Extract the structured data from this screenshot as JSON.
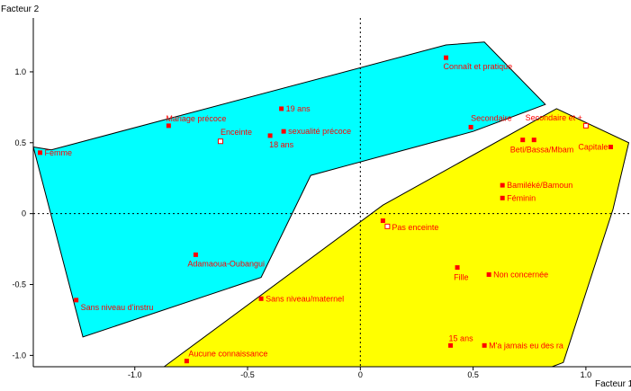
{
  "chart_data": {
    "type": "scatter",
    "title": "",
    "xlabel": "Facteur 1",
    "ylabel": "Facteur 2",
    "xlim": [
      -1.45,
      1.2
    ],
    "ylim": [
      -1.08,
      1.38
    ],
    "x_ticks": [
      -1.0,
      -0.5,
      0.0,
      0.5,
      1.0
    ],
    "x_tick_labels": [
      "-1.0",
      "-0.5",
      "0",
      "0.5",
      "1.0"
    ],
    "y_ticks": [
      1.0,
      0.5,
      0.0,
      -0.5,
      -1.0
    ],
    "y_tick_labels": [
      "1.0",
      "0.5",
      "0",
      "-0.5",
      "-1.0"
    ],
    "grid": false,
    "reference_lines": [
      0,
      0
    ],
    "point_color": "#ff0000",
    "label_color": "#ff0000",
    "regions": [
      {
        "fill": "#00ffff",
        "polygon": [
          [
            -1.45,
            0.47
          ],
          [
            -1.37,
            0.45
          ],
          [
            0.38,
            1.19
          ],
          [
            0.55,
            1.21
          ],
          [
            0.82,
            0.77
          ],
          [
            0.5,
            0.58
          ],
          [
            -0.22,
            0.27
          ],
          [
            -0.44,
            -0.45
          ],
          [
            -1.23,
            -0.87
          ]
        ]
      },
      {
        "fill": "#ffff00",
        "polygon": [
          [
            -0.87,
            -1.08
          ],
          [
            0.1,
            0.06
          ],
          [
            0.87,
            0.74
          ],
          [
            1.19,
            0.5
          ],
          [
            1.12,
            0.03
          ],
          [
            0.9,
            -1.05
          ],
          [
            0.85,
            -1.08
          ]
        ]
      }
    ],
    "points": [
      {
        "label": "Femme",
        "x": -1.42,
        "y": 0.43,
        "marker": "filled"
      },
      {
        "label": "Mariage précoce",
        "x": -0.85,
        "y": 0.62,
        "marker": "filled"
      },
      {
        "label": "Enceinte",
        "x": -0.62,
        "y": 0.51,
        "marker": "open"
      },
      {
        "label": "19 ans",
        "x": -0.35,
        "y": 0.74,
        "marker": "filled"
      },
      {
        "label": "sexualité précoce",
        "x": -0.34,
        "y": 0.58,
        "marker": "filled"
      },
      {
        "label": "18 ans",
        "x": -0.4,
        "y": 0.55,
        "marker": "filled"
      },
      {
        "label": "Connaît et pratique",
        "x": 0.38,
        "y": 1.1,
        "marker": "filled"
      },
      {
        "label": "Secondaire",
        "x": 0.49,
        "y": 0.61,
        "marker": "filled"
      },
      {
        "label": "Secondaire et +",
        "x": 1.0,
        "y": 0.62,
        "marker": "open"
      },
      {
        "label": "Capitale",
        "x": 1.11,
        "y": 0.47,
        "marker": "filled"
      },
      {
        "label": "Beti/Bassa/Mbam",
        "x": 0.72,
        "y": 0.52,
        "marker": "filled"
      },
      {
        "label": "",
        "x": 0.77,
        "y": 0.52,
        "marker": "filled"
      },
      {
        "label": "Bamiléké/Bamoun",
        "x": 0.63,
        "y": 0.2,
        "marker": "filled"
      },
      {
        "label": "Féminin",
        "x": 0.63,
        "y": 0.11,
        "marker": "filled"
      },
      {
        "label": "",
        "x": 0.1,
        "y": -0.05,
        "marker": "filled"
      },
      {
        "label": "Pas enceinte",
        "x": 0.12,
        "y": -0.09,
        "marker": "open"
      },
      {
        "label": "Adamaoua-Oubangui",
        "x": -0.73,
        "y": -0.29,
        "marker": "filled"
      },
      {
        "label": "Fille",
        "x": 0.43,
        "y": -0.38,
        "marker": "filled"
      },
      {
        "label": "Non concernée",
        "x": 0.57,
        "y": -0.43,
        "marker": "filled"
      },
      {
        "label": "Sans niveau d'instru",
        "x": -1.26,
        "y": -0.61,
        "marker": "filled"
      },
      {
        "label": "Sans niveau/maternel",
        "x": -0.44,
        "y": -0.6,
        "marker": "filled"
      },
      {
        "label": "15 ans",
        "x": 0.4,
        "y": -0.93,
        "marker": "filled"
      },
      {
        "label": "M'a jamais eu des ra",
        "x": 0.55,
        "y": -0.93,
        "marker": "filled"
      },
      {
        "label": "Aucune connaissance",
        "x": -0.77,
        "y": -1.04,
        "marker": "filled"
      }
    ]
  }
}
